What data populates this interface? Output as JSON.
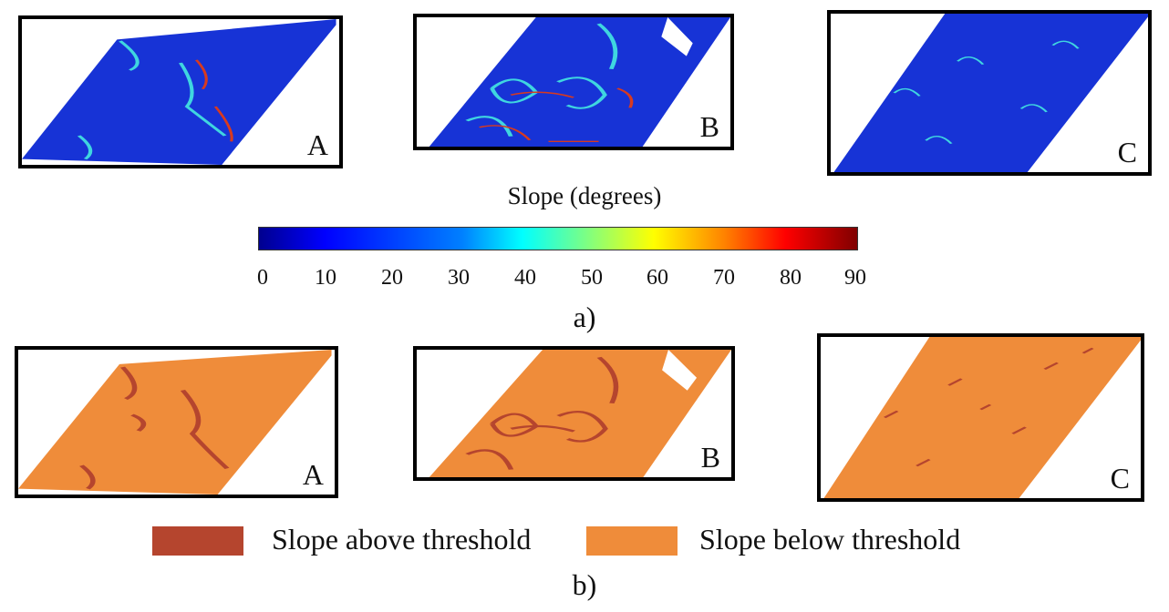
{
  "colorbar": {
    "title": "Slope (degrees)",
    "ticks": [
      "0",
      "10",
      "20",
      "30",
      "40",
      "50",
      "60",
      "70",
      "80",
      "90"
    ]
  },
  "panels_a": [
    {
      "label": "A"
    },
    {
      "label": "B"
    },
    {
      "label": "C"
    }
  ],
  "panels_b": [
    {
      "label": "A"
    },
    {
      "label": "B"
    },
    {
      "label": "C"
    }
  ],
  "caption_a": "a)",
  "caption_b": "b)",
  "legend": [
    {
      "label": "Slope above threshold",
      "color": "#b5452e"
    },
    {
      "label": "Slope below threshold",
      "color": "#ef8c3a"
    }
  ],
  "colors": {
    "slope_low": "#1733d6",
    "slope_mid": "#3fd6e0",
    "slope_high": "#d83a1f",
    "below_threshold": "#ef8c3a",
    "above_threshold": "#b5452e"
  }
}
